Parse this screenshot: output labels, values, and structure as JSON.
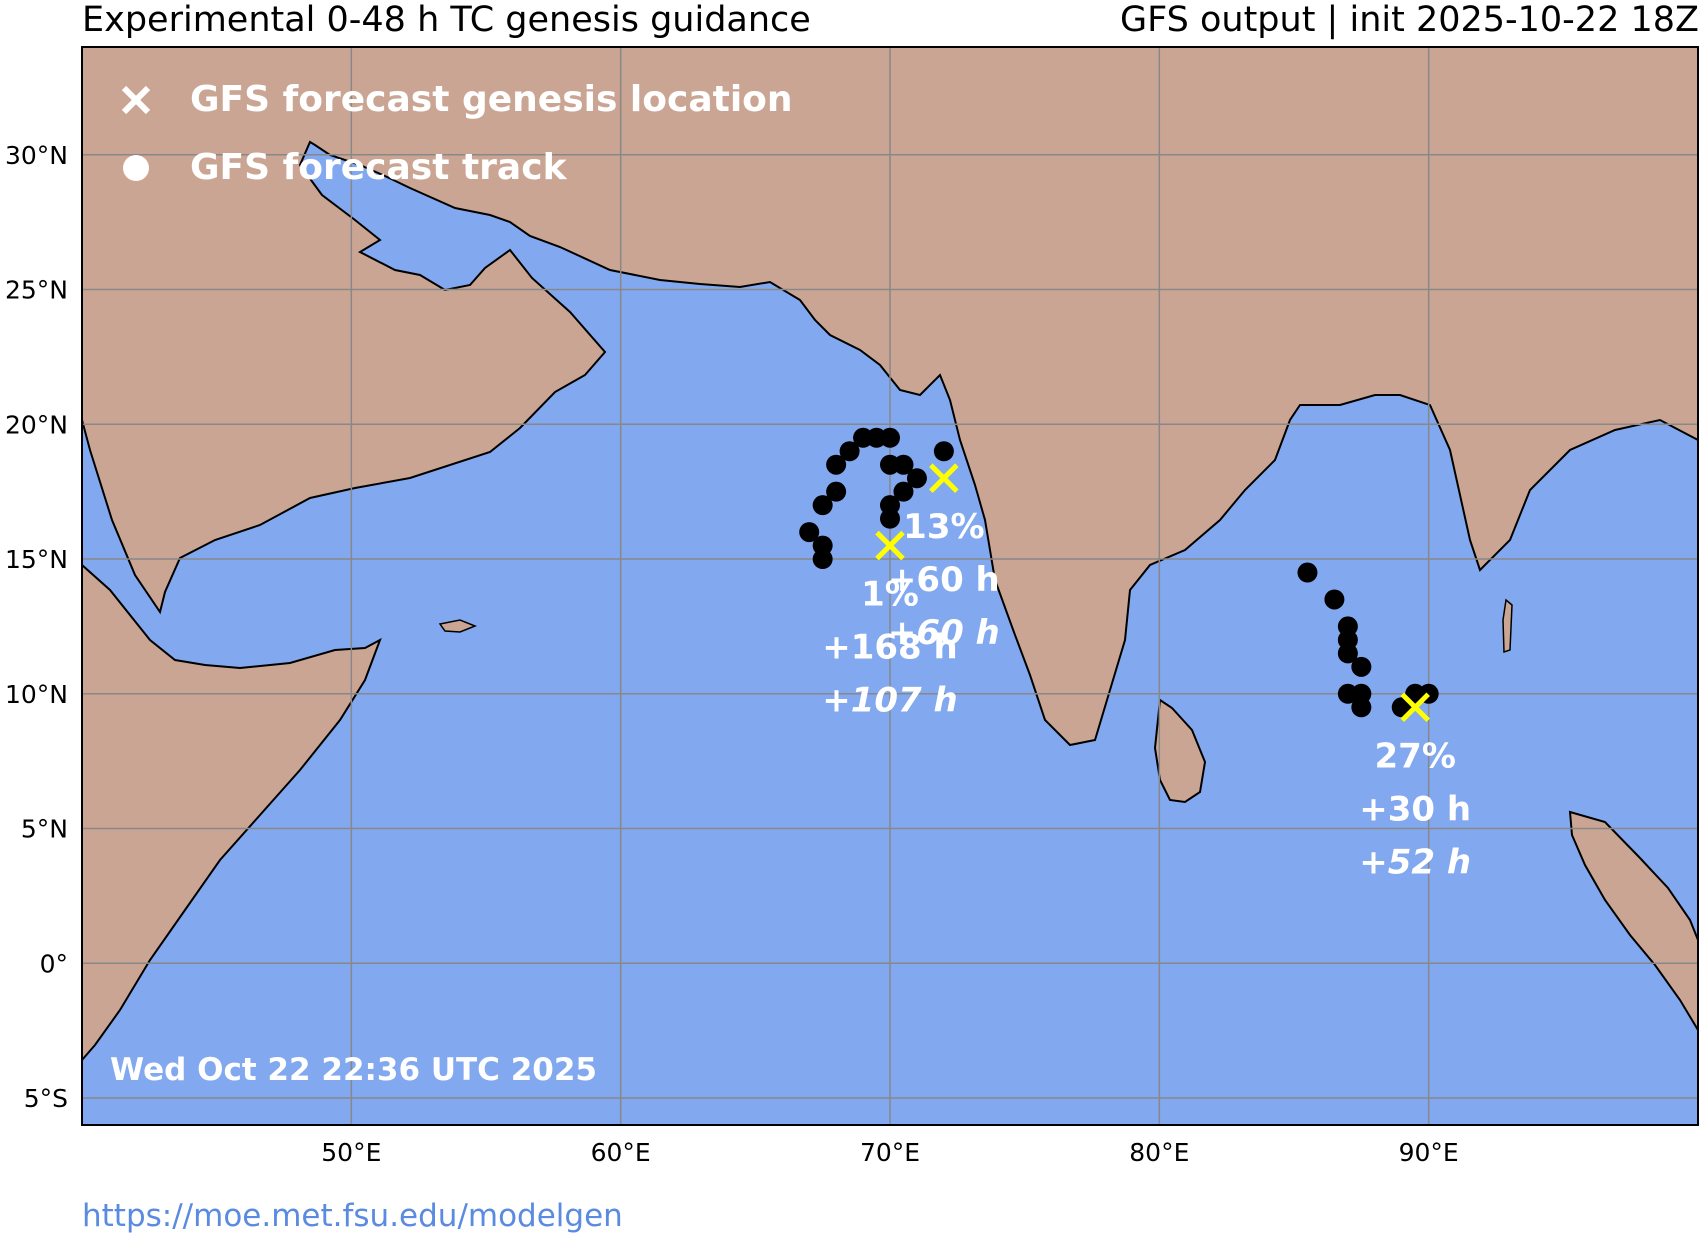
{
  "header": {
    "title_left": "Experimental 0-48 h TC genesis guidance",
    "title_right": "GFS output | init 2025-10-22 18Z"
  },
  "legend": {
    "genesis_label": "GFS forecast genesis location",
    "track_label": "GFS forecast track"
  },
  "timestamp": "Wed Oct 22 22:36 UTC 2025",
  "source_url": "https://moe.met.fsu.edu/modelgen",
  "colors": {
    "ocean": "#82a8ef",
    "land": "#cba593",
    "genesis_marker": "#ffff00",
    "track_marker": "#000000",
    "grid": "#888888",
    "label_text": "#ffffff"
  },
  "axes": {
    "lon_range": [
      40,
      100
    ],
    "lat_range": [
      -6,
      34
    ],
    "lat_ticks": [
      {
        "value": 30,
        "label": "30°N"
      },
      {
        "value": 25,
        "label": "25°N"
      },
      {
        "value": 20,
        "label": "20°N"
      },
      {
        "value": 15,
        "label": "15°N"
      },
      {
        "value": 10,
        "label": "10°N"
      },
      {
        "value": 5,
        "label": "5°N"
      },
      {
        "value": 0,
        "label": "0°"
      },
      {
        "value": -5,
        "label": "5°S"
      }
    ],
    "lon_ticks": [
      {
        "value": 50,
        "label": "50°E"
      },
      {
        "value": 60,
        "label": "60°E"
      },
      {
        "value": 70,
        "label": "70°E"
      },
      {
        "value": 80,
        "label": "80°E"
      },
      {
        "value": 90,
        "label": "90°E"
      }
    ]
  },
  "systems": [
    {
      "genesis": {
        "lon": 72.0,
        "lat": 18.0
      },
      "probability": "13%",
      "lead_time": "+60 h",
      "lead_time_italic": "+60 h",
      "track": [
        {
          "lon": 72.0,
          "lat": 19.0
        },
        {
          "lon": 71.0,
          "lat": 18.0
        },
        {
          "lon": 70.5,
          "lat": 18.5
        },
        {
          "lon": 70.5,
          "lat": 17.5
        },
        {
          "lon": 70.0,
          "lat": 17.0
        },
        {
          "lon": 70.0,
          "lat": 16.5
        }
      ]
    },
    {
      "genesis": {
        "lon": 70.0,
        "lat": 15.5
      },
      "probability": "1%",
      "lead_time": "+168 h",
      "lead_time_italic": "+107 h",
      "track": [
        {
          "lon": 70.0,
          "lat": 18.5
        },
        {
          "lon": 70.0,
          "lat": 19.5
        },
        {
          "lon": 69.5,
          "lat": 19.5
        },
        {
          "lon": 69.0,
          "lat": 19.5
        },
        {
          "lon": 68.5,
          "lat": 19.0
        },
        {
          "lon": 68.0,
          "lat": 18.5
        },
        {
          "lon": 68.0,
          "lat": 17.5
        },
        {
          "lon": 67.5,
          "lat": 17.0
        },
        {
          "lon": 67.0,
          "lat": 16.0
        },
        {
          "lon": 67.5,
          "lat": 15.5
        },
        {
          "lon": 67.5,
          "lat": 15.0
        }
      ]
    },
    {
      "genesis": {
        "lon": 89.5,
        "lat": 9.5
      },
      "probability": "27%",
      "lead_time": "+30 h",
      "lead_time_italic": "+52 h",
      "track": [
        {
          "lon": 89.0,
          "lat": 9.5
        },
        {
          "lon": 89.5,
          "lat": 10.0
        },
        {
          "lon": 90.0,
          "lat": 10.0
        },
        {
          "lon": 87.5,
          "lat": 9.5
        },
        {
          "lon": 87.5,
          "lat": 10.0
        },
        {
          "lon": 87.0,
          "lat": 10.0
        },
        {
          "lon": 87.5,
          "lat": 11.0
        },
        {
          "lon": 87.0,
          "lat": 11.5
        },
        {
          "lon": 87.0,
          "lat": 12.0
        },
        {
          "lon": 87.0,
          "lat": 12.5
        },
        {
          "lon": 86.5,
          "lat": 13.5
        },
        {
          "lon": 85.5,
          "lat": 14.5
        }
      ]
    }
  ]
}
